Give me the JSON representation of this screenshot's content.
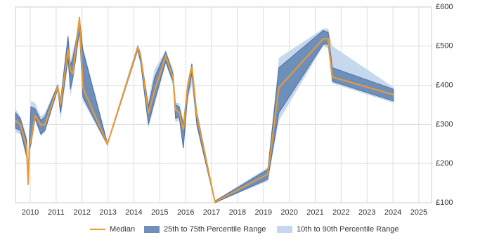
{
  "chart_data": {
    "type": "line",
    "x": [
      2009.43,
      2009.62,
      2009.86,
      2009.92,
      2009.97,
      2010.03,
      2010.19,
      2010.41,
      2010.57,
      2011.06,
      2011.17,
      2011.46,
      2011.55,
      2011.65,
      2011.76,
      2011.9,
      2012.03,
      2012.98,
      2014.15,
      2014.26,
      2014.56,
      2014.8,
      2015.23,
      2015.51,
      2015.61,
      2015.75,
      2015.91,
      2016.07,
      2016.24,
      2016.43,
      2017.13,
      2019.17,
      2019.6,
      2021.31,
      2021.5,
      2021.66,
      2024.02
    ],
    "series": [
      {
        "name": "Median",
        "color": "#eb9b2f",
        "values": [
          310,
          299,
          242,
          148,
          247,
          260,
          322,
          299,
          299,
          396,
          349,
          492,
          439,
          430,
          496,
          573,
          394,
          250,
          496,
          475,
          328,
          385,
          475,
          421,
          337,
          331,
          286,
          394,
          448,
          322,
          102,
          173,
          394,
          519,
          519,
          421,
          376
        ]
      }
    ],
    "bands": [
      {
        "name": "10th to 90th Percentile Range",
        "color": "#c6d8ee",
        "lower": [
          280,
          275,
          210,
          140,
          225,
          245,
          310,
          270,
          280,
          385,
          310,
          455,
          370,
          410,
          460,
          530,
          360,
          245,
          485,
          450,
          290,
          350,
          455,
          400,
          305,
          310,
          230,
          360,
          400,
          290,
          100,
          155,
          310,
          500,
          495,
          405,
          355
        ],
        "upper": [
          340,
          320,
          270,
          180,
          280,
          360,
          355,
          320,
          330,
          405,
          370,
          535,
          460,
          490,
          520,
          578,
          500,
          255,
          505,
          485,
          360,
          440,
          490,
          440,
          355,
          355,
          310,
          410,
          460,
          340,
          106,
          190,
          470,
          545,
          545,
          500,
          395
        ]
      },
      {
        "name": "25th to 75th Percentile Range",
        "color": "#6f8fbb",
        "lower": [
          290,
          285,
          220,
          145,
          235,
          250,
          315,
          275,
          285,
          390,
          330,
          470,
          390,
          420,
          470,
          540,
          370,
          248,
          490,
          460,
          300,
          360,
          460,
          410,
          315,
          320,
          240,
          370,
          430,
          300,
          100,
          160,
          330,
          505,
          505,
          410,
          360
        ],
        "upper": [
          330,
          315,
          260,
          170,
          270,
          345,
          340,
          310,
          320,
          400,
          360,
          525,
          450,
          470,
          510,
          575,
          490,
          252,
          500,
          480,
          345,
          420,
          485,
          430,
          350,
          345,
          300,
          400,
          455,
          330,
          104,
          185,
          445,
          540,
          535,
          445,
          390
        ]
      }
    ],
    "xlim": [
      2009.43,
      2025.49
    ],
    "xticks": [
      2010,
      2011,
      2012,
      2013,
      2014,
      2015,
      2016,
      2017,
      2018,
      2019,
      2020,
      2021,
      2022,
      2023,
      2024,
      2025
    ],
    "ylim": [
      100,
      600
    ],
    "yticks": [
      {
        "value": 100,
        "label": "£100"
      },
      {
        "value": 200,
        "label": "£200"
      },
      {
        "value": 300,
        "label": "£300"
      },
      {
        "value": 400,
        "label": "£400"
      },
      {
        "value": 500,
        "label": "£500"
      },
      {
        "value": 600,
        "label": "£600"
      }
    ],
    "grid": true,
    "legend": "bottom"
  }
}
